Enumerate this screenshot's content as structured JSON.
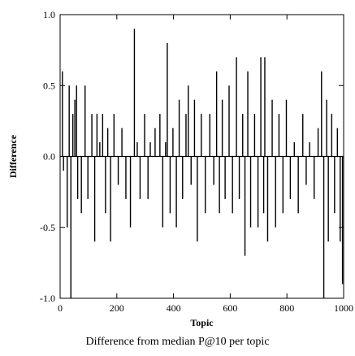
{
  "caption": "Difference from median P@10 per topic",
  "chart_data": {
    "type": "bar",
    "title": "",
    "xlabel": "Topic",
    "ylabel": "Difference",
    "xlim": [
      0,
      1000
    ],
    "ylim": [
      -1.0,
      1.0
    ],
    "x_ticks": [
      0,
      200,
      400,
      600,
      800,
      1000
    ],
    "x_tick_labels": [
      "0",
      "200",
      "400",
      "600",
      "800",
      "1000"
    ],
    "y_ticks": [
      -1.0,
      -0.5,
      0.0,
      0.5,
      1.0
    ],
    "y_tick_labels": [
      "-1.0",
      "-0.5",
      "0.0",
      "0.5",
      "1.0"
    ],
    "grid": false,
    "series": [
      {
        "values": [
          {
            "x": 8,
            "y": 0.6
          },
          {
            "x": 12,
            "y": -0.1
          },
          {
            "x": 25,
            "y": -0.5
          },
          {
            "x": 32,
            "y": 0.5
          },
          {
            "x": 38,
            "y": -1.0
          },
          {
            "x": 45,
            "y": 0.3
          },
          {
            "x": 52,
            "y": 0.4
          },
          {
            "x": 58,
            "y": 0.5
          },
          {
            "x": 62,
            "y": -0.3
          },
          {
            "x": 75,
            "y": -0.4
          },
          {
            "x": 88,
            "y": 0.5
          },
          {
            "x": 98,
            "y": -0.3
          },
          {
            "x": 112,
            "y": 0.3
          },
          {
            "x": 122,
            "y": -0.6
          },
          {
            "x": 130,
            "y": 0.3
          },
          {
            "x": 140,
            "y": 0.1
          },
          {
            "x": 150,
            "y": 0.3
          },
          {
            "x": 160,
            "y": -0.4
          },
          {
            "x": 168,
            "y": 0.2
          },
          {
            "x": 178,
            "y": -0.6
          },
          {
            "x": 190,
            "y": 0.3
          },
          {
            "x": 205,
            "y": -0.2
          },
          {
            "x": 218,
            "y": 0.2
          },
          {
            "x": 232,
            "y": -0.3
          },
          {
            "x": 248,
            "y": -0.5
          },
          {
            "x": 262,
            "y": 0.9
          },
          {
            "x": 272,
            "y": 0.1
          },
          {
            "x": 282,
            "y": -0.3
          },
          {
            "x": 298,
            "y": 0.3
          },
          {
            "x": 310,
            "y": -0.3
          },
          {
            "x": 318,
            "y": 0.1
          },
          {
            "x": 335,
            "y": 0.2
          },
          {
            "x": 352,
            "y": 0.3
          },
          {
            "x": 362,
            "y": -0.5
          },
          {
            "x": 372,
            "y": 0.1
          },
          {
            "x": 378,
            "y": 0.8
          },
          {
            "x": 388,
            "y": -0.4
          },
          {
            "x": 398,
            "y": 0.2
          },
          {
            "x": 410,
            "y": -0.5
          },
          {
            "x": 420,
            "y": 0.4
          },
          {
            "x": 432,
            "y": -0.3
          },
          {
            "x": 444,
            "y": 0.3
          },
          {
            "x": 452,
            "y": 0.5
          },
          {
            "x": 462,
            "y": -0.2
          },
          {
            "x": 474,
            "y": 0.4
          },
          {
            "x": 484,
            "y": -0.6
          },
          {
            "x": 498,
            "y": 0.3
          },
          {
            "x": 512,
            "y": -0.4
          },
          {
            "x": 528,
            "y": 0.3
          },
          {
            "x": 542,
            "y": -0.2
          },
          {
            "x": 552,
            "y": 0.6
          },
          {
            "x": 562,
            "y": -0.4
          },
          {
            "x": 572,
            "y": 0.4
          },
          {
            "x": 582,
            "y": -0.3
          },
          {
            "x": 596,
            "y": 0.5
          },
          {
            "x": 608,
            "y": -0.4
          },
          {
            "x": 622,
            "y": 0.7
          },
          {
            "x": 632,
            "y": -0.3
          },
          {
            "x": 644,
            "y": 0.3
          },
          {
            "x": 652,
            "y": -0.7
          },
          {
            "x": 662,
            "y": 0.6
          },
          {
            "x": 672,
            "y": -0.5
          },
          {
            "x": 686,
            "y": 0.3
          },
          {
            "x": 698,
            "y": -0.5
          },
          {
            "x": 708,
            "y": 0.7
          },
          {
            "x": 718,
            "y": -0.4
          },
          {
            "x": 722,
            "y": 0.7
          },
          {
            "x": 732,
            "y": -0.6
          },
          {
            "x": 748,
            "y": 0.4
          },
          {
            "x": 760,
            "y": -0.5
          },
          {
            "x": 772,
            "y": 0.3
          },
          {
            "x": 786,
            "y": -0.4
          },
          {
            "x": 798,
            "y": 0.4
          },
          {
            "x": 812,
            "y": -0.3
          },
          {
            "x": 826,
            "y": 0.1
          },
          {
            "x": 840,
            "y": -0.4
          },
          {
            "x": 856,
            "y": 0.3
          },
          {
            "x": 868,
            "y": -0.2
          },
          {
            "x": 880,
            "y": 0.1
          },
          {
            "x": 896,
            "y": -0.3
          },
          {
            "x": 910,
            "y": 0.2
          },
          {
            "x": 922,
            "y": 0.6
          },
          {
            "x": 930,
            "y": -1.0
          },
          {
            "x": 940,
            "y": 0.4
          },
          {
            "x": 946,
            "y": -0.6
          },
          {
            "x": 958,
            "y": 0.3
          },
          {
            "x": 968,
            "y": -0.4
          },
          {
            "x": 978,
            "y": 0.2
          },
          {
            "x": 988,
            "y": -0.6
          },
          {
            "x": 996,
            "y": -0.9
          }
        ]
      }
    ]
  }
}
